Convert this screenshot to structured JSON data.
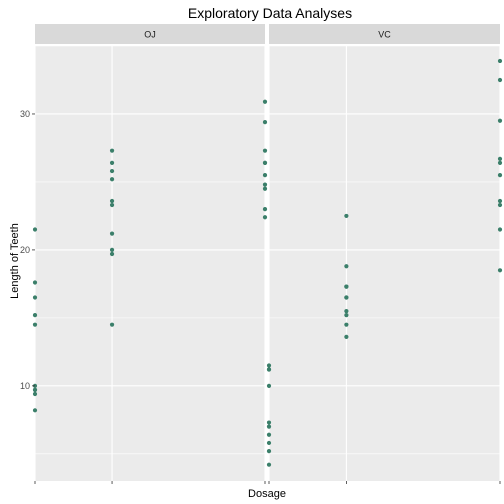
{
  "chart_data": {
    "type": "scatter",
    "title": "Exploratory Data Analyses",
    "xlabel": "Dosage",
    "ylabel": "Length of Teeth",
    "x_categories": [
      "0.5",
      "1",
      "2"
    ],
    "x_tick_labels_shown": false,
    "ylim": [
      3,
      35
    ],
    "y_ticks": [
      10,
      20,
      30
    ],
    "grid": true,
    "point_color": "#3b7f6a",
    "panel_background": "#ebebeb",
    "strip_background": "#d9d9d9",
    "grid_color": "#ffffff",
    "facets": [
      {
        "label": "OJ",
        "points": [
          {
            "x": "0.5",
            "y": 15.2
          },
          {
            "x": "0.5",
            "y": 21.5
          },
          {
            "x": "0.5",
            "y": 17.6
          },
          {
            "x": "0.5",
            "y": 9.7
          },
          {
            "x": "0.5",
            "y": 14.5
          },
          {
            "x": "0.5",
            "y": 10.0
          },
          {
            "x": "0.5",
            "y": 8.2
          },
          {
            "x": "0.5",
            "y": 9.4
          },
          {
            "x": "0.5",
            "y": 16.5
          },
          {
            "x": "0.5",
            "y": 9.7
          },
          {
            "x": "1",
            "y": 19.7
          },
          {
            "x": "1",
            "y": 23.3
          },
          {
            "x": "1",
            "y": 23.6
          },
          {
            "x": "1",
            "y": 26.4
          },
          {
            "x": "1",
            "y": 20.0
          },
          {
            "x": "1",
            "y": 25.2
          },
          {
            "x": "1",
            "y": 25.8
          },
          {
            "x": "1",
            "y": 21.2
          },
          {
            "x": "1",
            "y": 14.5
          },
          {
            "x": "1",
            "y": 27.3
          },
          {
            "x": "2",
            "y": 25.5
          },
          {
            "x": "2",
            "y": 26.4
          },
          {
            "x": "2",
            "y": 22.4
          },
          {
            "x": "2",
            "y": 24.5
          },
          {
            "x": "2",
            "y": 24.8
          },
          {
            "x": "2",
            "y": 30.9
          },
          {
            "x": "2",
            "y": 26.4
          },
          {
            "x": "2",
            "y": 27.3
          },
          {
            "x": "2",
            "y": 29.4
          },
          {
            "x": "2",
            "y": 23.0
          }
        ]
      },
      {
        "label": "VC",
        "points": [
          {
            "x": "0.5",
            "y": 4.2
          },
          {
            "x": "0.5",
            "y": 11.5
          },
          {
            "x": "0.5",
            "y": 7.3
          },
          {
            "x": "0.5",
            "y": 5.8
          },
          {
            "x": "0.5",
            "y": 6.4
          },
          {
            "x": "0.5",
            "y": 10.0
          },
          {
            "x": "0.5",
            "y": 11.2
          },
          {
            "x": "0.5",
            "y": 11.2
          },
          {
            "x": "0.5",
            "y": 5.2
          },
          {
            "x": "0.5",
            "y": 7.0
          },
          {
            "x": "1",
            "y": 16.5
          },
          {
            "x": "1",
            "y": 16.5
          },
          {
            "x": "1",
            "y": 15.2
          },
          {
            "x": "1",
            "y": 17.3
          },
          {
            "x": "1",
            "y": 22.5
          },
          {
            "x": "1",
            "y": 17.3
          },
          {
            "x": "1",
            "y": 13.6
          },
          {
            "x": "1",
            "y": 14.5
          },
          {
            "x": "1",
            "y": 18.8
          },
          {
            "x": "1",
            "y": 15.5
          },
          {
            "x": "2",
            "y": 23.6
          },
          {
            "x": "2",
            "y": 18.5
          },
          {
            "x": "2",
            "y": 33.9
          },
          {
            "x": "2",
            "y": 25.5
          },
          {
            "x": "2",
            "y": 26.4
          },
          {
            "x": "2",
            "y": 32.5
          },
          {
            "x": "2",
            "y": 26.7
          },
          {
            "x": "2",
            "y": 21.5
          },
          {
            "x": "2",
            "y": 23.3
          },
          {
            "x": "2",
            "y": 29.5
          }
        ]
      }
    ]
  }
}
